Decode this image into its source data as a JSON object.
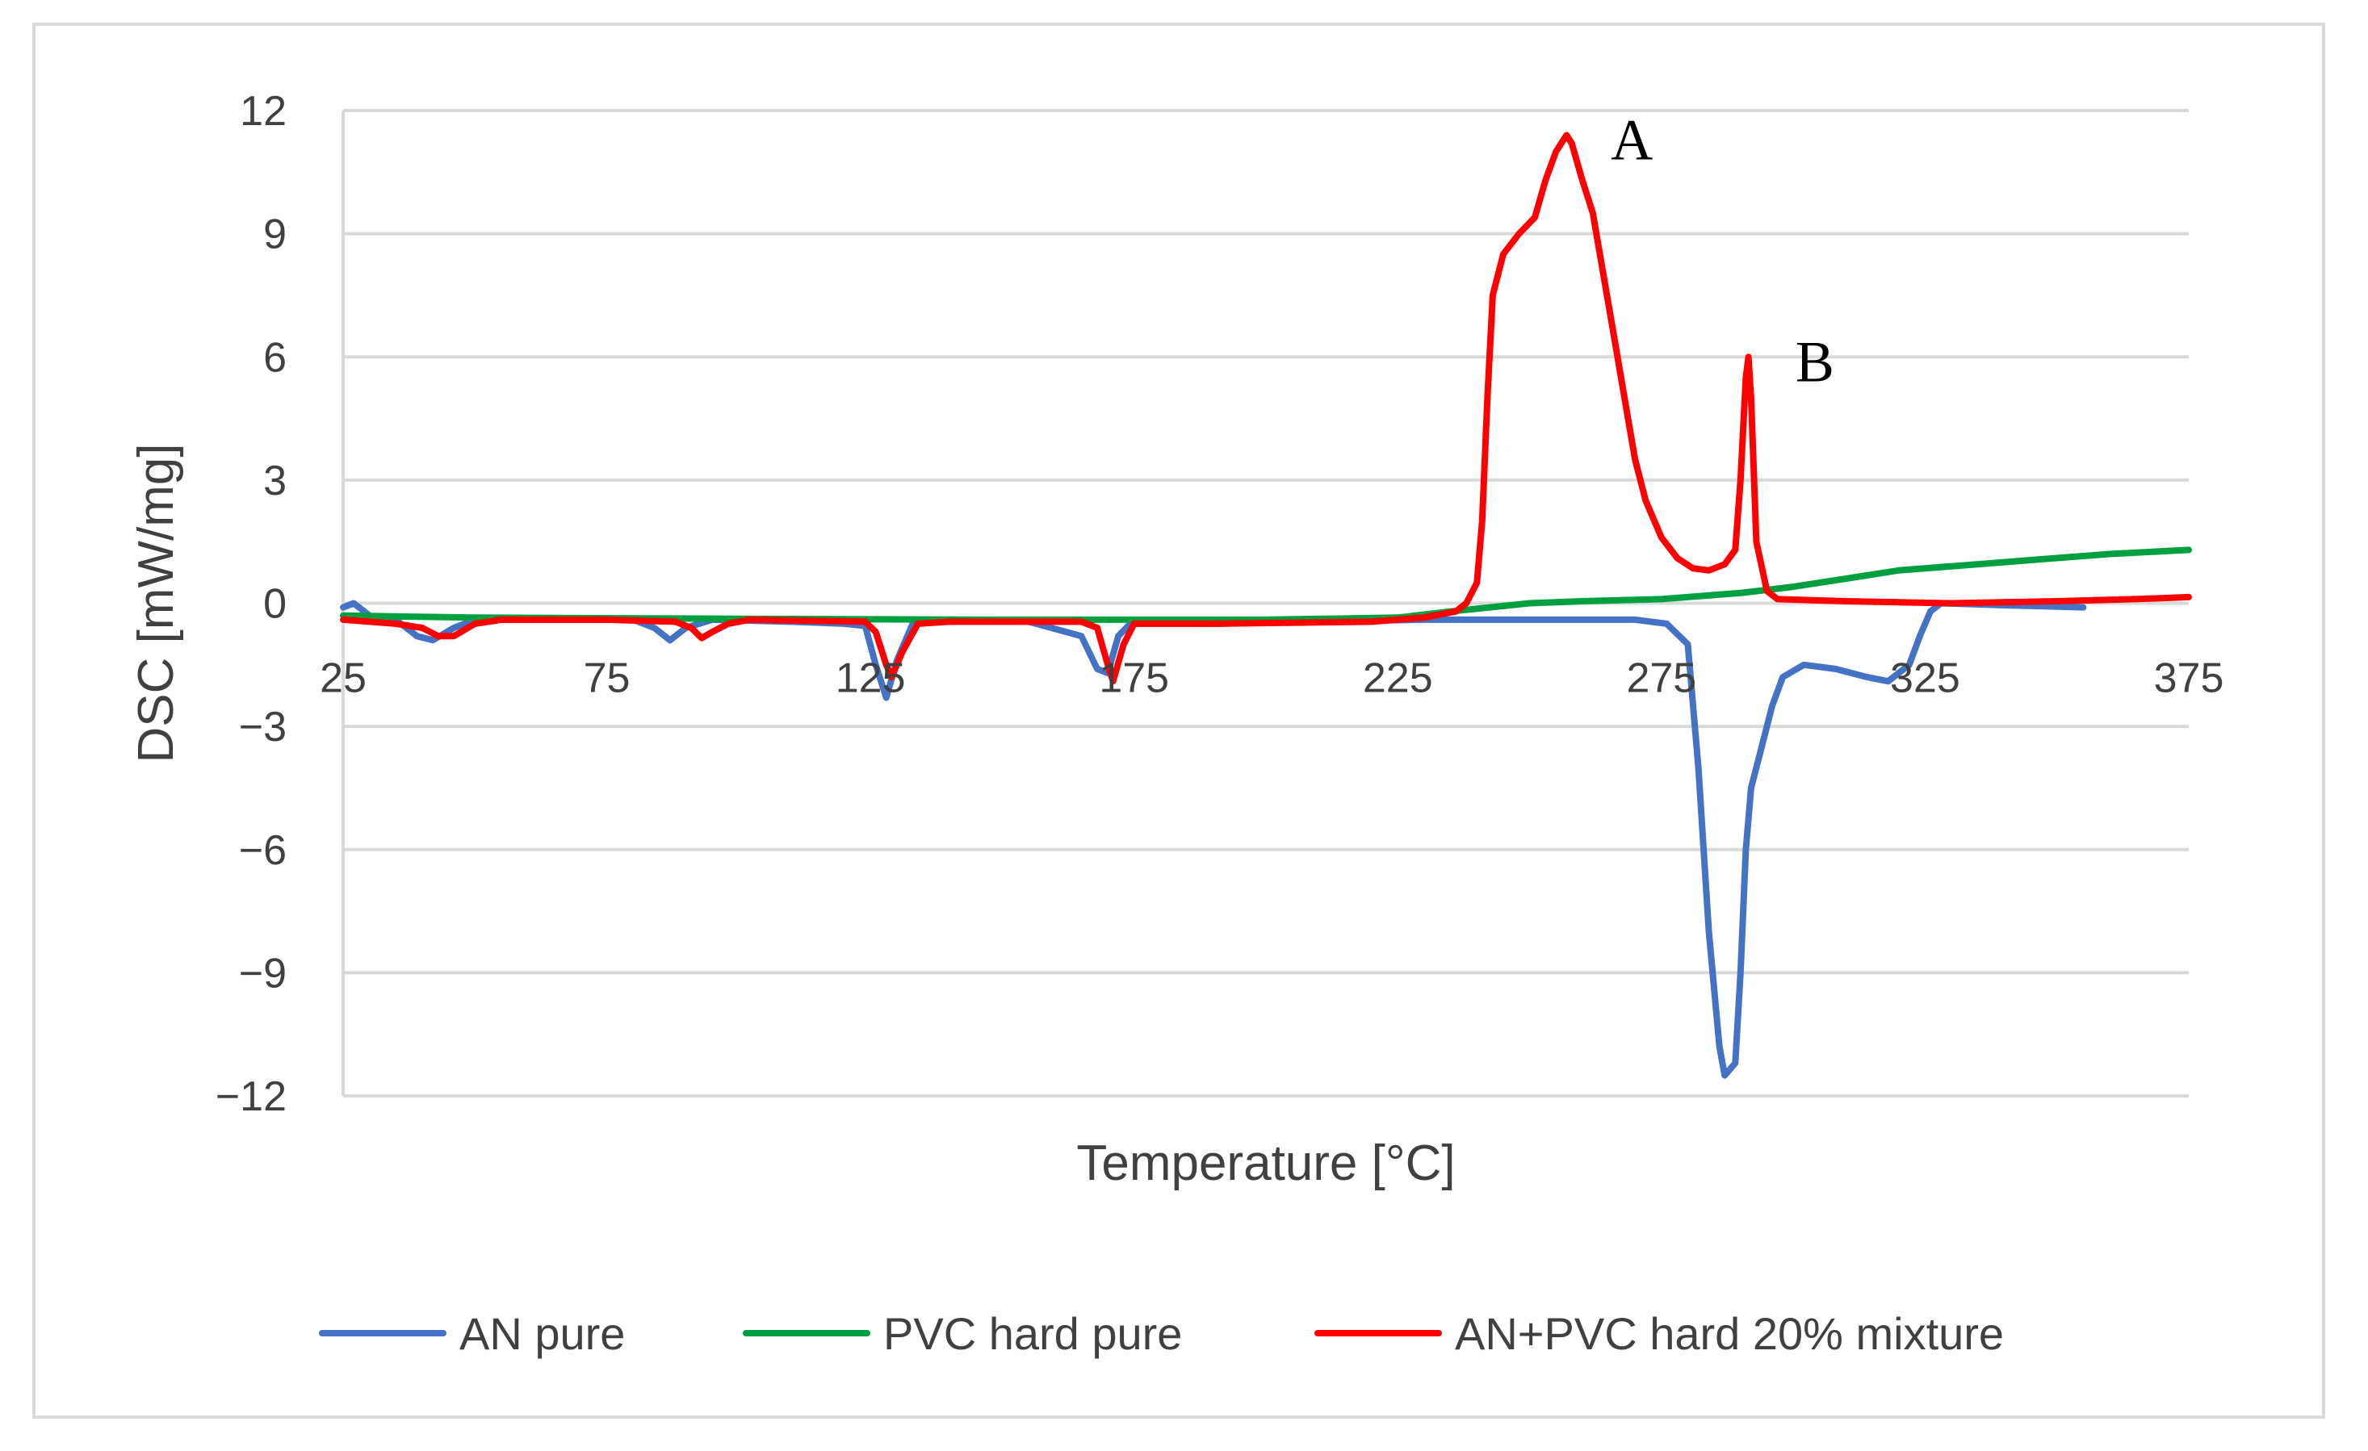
{
  "chart_data": {
    "type": "line",
    "title": "",
    "xlabel": "Temperature [°C]",
    "ylabel": "DSC [mW/mg]",
    "xlim": [
      25,
      375
    ],
    "ylim": [
      -12,
      12
    ],
    "x_ticks": [
      25,
      75,
      125,
      175,
      225,
      275,
      325,
      375
    ],
    "y_ticks": [
      12,
      9,
      6,
      3,
      0,
      -3,
      -6,
      -9,
      -12
    ],
    "y_tick_labels": [
      "12",
      "9",
      "6",
      "3",
      "0",
      "−3",
      "−6",
      "−9",
      "−12"
    ],
    "grid": "horizontal",
    "legend_position": "bottom",
    "annotations": [
      {
        "text": "A",
        "x": 257,
        "y": 11.4
      },
      {
        "text": "B",
        "x": 292,
        "y": 6.0
      }
    ],
    "series": [
      {
        "name": "AN pure",
        "color": "#4472C4",
        "points": [
          [
            25,
            -0.1
          ],
          [
            27,
            0.0
          ],
          [
            30,
            -0.3
          ],
          [
            35,
            -0.4
          ],
          [
            39,
            -0.8
          ],
          [
            42,
            -0.9
          ],
          [
            46,
            -0.6
          ],
          [
            50,
            -0.4
          ],
          [
            60,
            -0.4
          ],
          [
            75,
            -0.4
          ],
          [
            80,
            -0.4
          ],
          [
            84,
            -0.6
          ],
          [
            87,
            -0.9
          ],
          [
            90,
            -0.6
          ],
          [
            95,
            -0.4
          ],
          [
            110,
            -0.45
          ],
          [
            120,
            -0.5
          ],
          [
            124,
            -0.55
          ],
          [
            126,
            -1.5
          ],
          [
            128,
            -2.3
          ],
          [
            130,
            -1.4
          ],
          [
            133,
            -0.5
          ],
          [
            140,
            -0.4
          ],
          [
            155,
            -0.45
          ],
          [
            165,
            -0.8
          ],
          [
            168,
            -1.6
          ],
          [
            170,
            -1.7
          ],
          [
            172,
            -0.8
          ],
          [
            175,
            -0.4
          ],
          [
            190,
            -0.5
          ],
          [
            210,
            -0.45
          ],
          [
            230,
            -0.4
          ],
          [
            250,
            -0.4
          ],
          [
            270,
            -0.4
          ],
          [
            276,
            -0.5
          ],
          [
            280,
            -1.0
          ],
          [
            282,
            -4.0
          ],
          [
            284,
            -8.0
          ],
          [
            286,
            -10.8
          ],
          [
            287,
            -11.5
          ],
          [
            289,
            -11.2
          ],
          [
            290,
            -9.0
          ],
          [
            291,
            -6.0
          ],
          [
            292,
            -4.5
          ],
          [
            294,
            -3.5
          ],
          [
            296,
            -2.5
          ],
          [
            298,
            -1.8
          ],
          [
            302,
            -1.5
          ],
          [
            308,
            -1.6
          ],
          [
            314,
            -1.8
          ],
          [
            318,
            -1.9
          ],
          [
            322,
            -1.5
          ],
          [
            324,
            -0.8
          ],
          [
            326,
            -0.2
          ],
          [
            328,
            0.0
          ],
          [
            340,
            -0.05
          ],
          [
            355,
            -0.1
          ]
        ]
      },
      {
        "name": "PVC hard pure",
        "color": "#00A040",
        "points": [
          [
            25,
            -0.3
          ],
          [
            50,
            -0.35
          ],
          [
            100,
            -0.38
          ],
          [
            150,
            -0.4
          ],
          [
            200,
            -0.4
          ],
          [
            225,
            -0.35
          ],
          [
            235,
            -0.2
          ],
          [
            250,
            0.0
          ],
          [
            260,
            0.05
          ],
          [
            275,
            0.1
          ],
          [
            290,
            0.25
          ],
          [
            300,
            0.4
          ],
          [
            310,
            0.6
          ],
          [
            320,
            0.8
          ],
          [
            330,
            0.9
          ],
          [
            340,
            1.0
          ],
          [
            350,
            1.1
          ],
          [
            360,
            1.2
          ],
          [
            375,
            1.3
          ]
        ]
      },
      {
        "name": "AN+PVC hard 20% mixture",
        "color": "#FF0000",
        "points": [
          [
            25,
            -0.4
          ],
          [
            35,
            -0.5
          ],
          [
            40,
            -0.6
          ],
          [
            43,
            -0.8
          ],
          [
            46,
            -0.8
          ],
          [
            50,
            -0.5
          ],
          [
            55,
            -0.4
          ],
          [
            75,
            -0.4
          ],
          [
            88,
            -0.45
          ],
          [
            91,
            -0.6
          ],
          [
            93,
            -0.85
          ],
          [
            95,
            -0.7
          ],
          [
            98,
            -0.5
          ],
          [
            102,
            -0.4
          ],
          [
            124,
            -0.45
          ],
          [
            126,
            -0.7
          ],
          [
            128,
            -1.5
          ],
          [
            129,
            -1.8
          ],
          [
            131,
            -1.2
          ],
          [
            134,
            -0.5
          ],
          [
            140,
            -0.45
          ],
          [
            165,
            -0.45
          ],
          [
            168,
            -0.6
          ],
          [
            170,
            -1.5
          ],
          [
            171,
            -1.9
          ],
          [
            173,
            -1.0
          ],
          [
            175,
            -0.5
          ],
          [
            190,
            -0.5
          ],
          [
            220,
            -0.45
          ],
          [
            230,
            -0.35
          ],
          [
            236,
            -0.2
          ],
          [
            238,
            0.0
          ],
          [
            240,
            0.5
          ],
          [
            241,
            2.0
          ],
          [
            242,
            5.0
          ],
          [
            243,
            7.5
          ],
          [
            245,
            8.5
          ],
          [
            248,
            9.0
          ],
          [
            251,
            9.4
          ],
          [
            253,
            10.3
          ],
          [
            255,
            11.0
          ],
          [
            257,
            11.4
          ],
          [
            258,
            11.2
          ],
          [
            260,
            10.3
          ],
          [
            262,
            9.5
          ],
          [
            264,
            8.0
          ],
          [
            266,
            6.5
          ],
          [
            268,
            5.0
          ],
          [
            270,
            3.5
          ],
          [
            272,
            2.5
          ],
          [
            275,
            1.6
          ],
          [
            278,
            1.1
          ],
          [
            281,
            0.85
          ],
          [
            284,
            0.8
          ],
          [
            287,
            0.95
          ],
          [
            289,
            1.3
          ],
          [
            290,
            3.0
          ],
          [
            291,
            5.5
          ],
          [
            291.5,
            6.0
          ],
          [
            292,
            5.0
          ],
          [
            293,
            1.5
          ],
          [
            295,
            0.3
          ],
          [
            297,
            0.1
          ],
          [
            310,
            0.05
          ],
          [
            330,
            0.0
          ],
          [
            350,
            0.05
          ],
          [
            365,
            0.1
          ],
          [
            375,
            0.15
          ]
        ]
      }
    ]
  }
}
